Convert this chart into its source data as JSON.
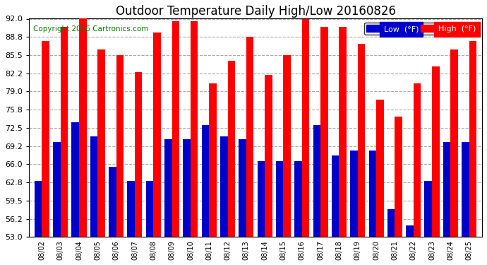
{
  "title": "Outdoor Temperature Daily High/Low 20160826",
  "copyright": "Copyright 2016 Cartronics.com",
  "legend_low": "Low  (°F)",
  "legend_high": "High  (°F)",
  "dates": [
    "08/02",
    "08/03",
    "08/04",
    "08/05",
    "08/06",
    "08/07",
    "08/08",
    "08/09",
    "08/10",
    "08/11",
    "08/12",
    "08/13",
    "08/14",
    "08/15",
    "08/16",
    "08/17",
    "08/18",
    "08/19",
    "08/20",
    "08/21",
    "08/22",
    "08/23",
    "08/24",
    "08/25"
  ],
  "highs": [
    88.0,
    90.5,
    92.5,
    86.5,
    85.5,
    82.5,
    89.5,
    91.5,
    91.5,
    80.5,
    84.5,
    88.8,
    82.0,
    85.5,
    92.0,
    90.5,
    90.5,
    87.5,
    77.5,
    74.5,
    80.5,
    83.5,
    86.5,
    88.0
  ],
  "lows": [
    63.0,
    70.0,
    73.5,
    71.0,
    65.5,
    63.0,
    63.0,
    70.5,
    70.5,
    73.0,
    71.0,
    70.5,
    66.5,
    66.5,
    66.5,
    73.0,
    67.5,
    68.5,
    68.5,
    58.0,
    55.0,
    63.0,
    70.0,
    70.0
  ],
  "high_color": "#ff0000",
  "low_color": "#0000cc",
  "bg_color": "#ffffff",
  "grid_color": "#aaaaaa",
  "ylim_min": 53.0,
  "ylim_max": 92.0,
  "yticks": [
    53.0,
    56.2,
    59.5,
    62.8,
    66.0,
    69.2,
    72.5,
    75.8,
    79.0,
    82.2,
    85.5,
    88.8,
    92.0
  ],
  "title_fontsize": 12,
  "copyright_fontsize": 7.5,
  "bar_width": 0.4
}
